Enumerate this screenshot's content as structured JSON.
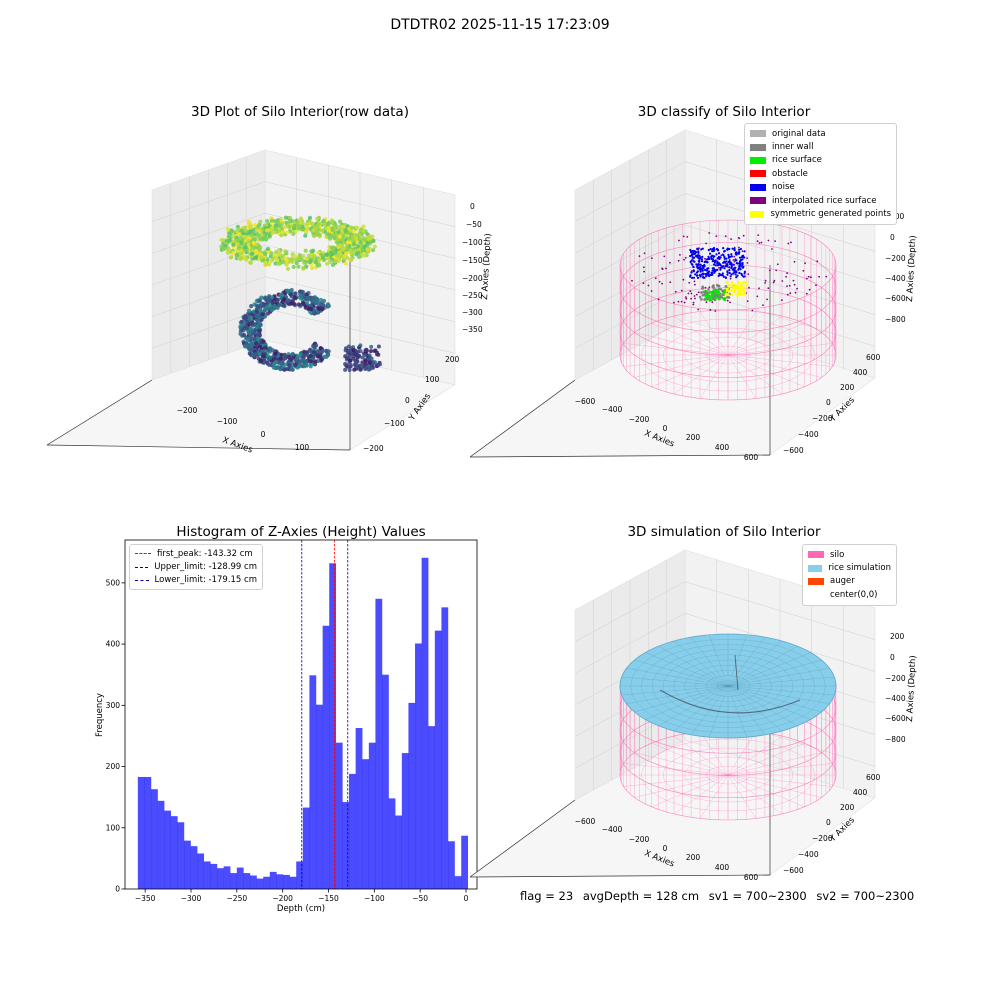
{
  "figure_title": "DTDTR02 2025-11-15 17:23:09",
  "footer": {
    "flag": "flag = 23",
    "avg_depth": "avgDepth = 128 cm",
    "sv1": "sv1 = 700~2300",
    "sv2": "sv2 = 700~2300"
  },
  "chart_data": [
    {
      "type": "scatter",
      "title": "3D Plot of Silo Interior(row data)",
      "xlabel": "X Axies",
      "ylabel": "Y Axies",
      "zlabel": "Z Axies (Depth)",
      "x_ticks": [
        "−200",
        "−100",
        "0",
        "100"
      ],
      "y_ticks": [
        "−200",
        "−100",
        "0",
        "100",
        "200"
      ],
      "z_ticks": [
        "0",
        "−50",
        "−100",
        "−150",
        "−200",
        "−250",
        "−300",
        "−350"
      ],
      "colormap": "viridis"
    },
    {
      "type": "scatter",
      "title": "3D classify of Silo Interior",
      "xlabel": "X Axies",
      "ylabel": "Y Axies",
      "zlabel": "Z Axies (Depth)",
      "x_ticks": [
        "−600",
        "−400",
        "−200",
        "0",
        "200",
        "400",
        "600"
      ],
      "y_ticks": [
        "−600",
        "−400",
        "−200",
        "0",
        "200",
        "400",
        "600"
      ],
      "z_ticks": [
        "200",
        "0",
        "−200",
        "−400",
        "−600",
        "−800"
      ],
      "legend": [
        {
          "label": "original data",
          "color": "#b0b0b0"
        },
        {
          "label": "inner wall",
          "color": "#808080"
        },
        {
          "label": "rice surface",
          "color": "#00ee00"
        },
        {
          "label": "obstacle",
          "color": "#ff0000"
        },
        {
          "label": "noise",
          "color": "#0000ee"
        },
        {
          "label": "interpolated rice surface",
          "color": "#800080"
        },
        {
          "label": "symmetric generated points",
          "color": "#ffff00"
        }
      ],
      "legend_position": "top-right"
    },
    {
      "type": "bar",
      "title": "Histogram of Z-Axies (Height) Values",
      "xlabel": "Depth (cm)",
      "ylabel": "Frequency",
      "xlim": [
        -372,
        12
      ],
      "ylim": [
        0,
        570
      ],
      "x_ticks": [
        -350,
        -300,
        -250,
        -200,
        -150,
        -100,
        -50,
        0
      ],
      "x_tick_labels": [
        "−350",
        "−300",
        "−250",
        "−200",
        "−150",
        "−100",
        "−50",
        "0"
      ],
      "y_ticks": [
        0,
        100,
        200,
        300,
        400,
        500
      ],
      "y_tick_labels": [
        "0",
        "100",
        "200",
        "300",
        "400",
        "500"
      ],
      "bin_edges_range": [
        -358,
        2
      ],
      "values": [
        183,
        183,
        163,
        144,
        128,
        119,
        109,
        79,
        70,
        58,
        45,
        41,
        34,
        37,
        26,
        35,
        26,
        22,
        17,
        20,
        28,
        24,
        23,
        20,
        45,
        133,
        349,
        301,
        430,
        532,
        239,
        142,
        188,
        263,
        212,
        239,
        474,
        350,
        148,
        120,
        222,
        304,
        401,
        541,
        266,
        422,
        460,
        78,
        21,
        87
      ],
      "bar_color": "#0000ff",
      "vlines": [
        {
          "label": "first_peak: -143.32 cm",
          "x": -143.32,
          "color": "#ff0000"
        },
        {
          "label": "Upper_limit: -128.99 cm",
          "x": -128.99,
          "color": "#0000aa"
        },
        {
          "label": "Lower_limit: -179.15 cm",
          "x": -179.15,
          "color": "#0000aa"
        }
      ],
      "legend_position": "top-left"
    },
    {
      "type": "surface",
      "title": "3D simulation of Silo Interior",
      "xlabel": "X Axies",
      "ylabel": "Y Axies",
      "zlabel": "Z Axies (Depth)",
      "x_ticks": [
        "−600",
        "−400",
        "−200",
        "0",
        "200",
        "400",
        "600"
      ],
      "y_ticks": [
        "−600",
        "−400",
        "−200",
        "0",
        "200",
        "400",
        "600"
      ],
      "z_ticks": [
        "200",
        "0",
        "−200",
        "−400",
        "−600",
        "−800"
      ],
      "legend": [
        {
          "label": "silo",
          "color": "#ff69b4"
        },
        {
          "label": "rice simulation",
          "color": "#87ceeb"
        },
        {
          "label": "auger",
          "color": "#ff4500"
        },
        {
          "label": "center(0,0)",
          "color": "#ffffff"
        }
      ],
      "legend_position": "top-right"
    }
  ]
}
